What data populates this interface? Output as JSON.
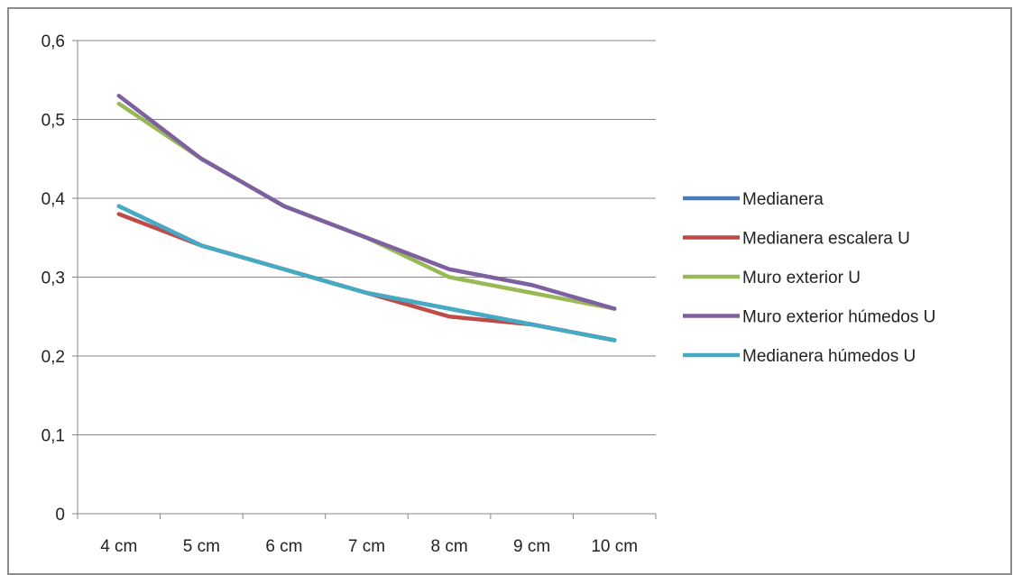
{
  "chart_data": {
    "type": "line",
    "categories": [
      "4 cm",
      "5 cm",
      "6 cm",
      "7 cm",
      "8 cm",
      "9 cm",
      "10 cm"
    ],
    "y_ticks": [
      "0",
      "0,1",
      "0,2",
      "0,3",
      "0,4",
      "0,5",
      "0,6"
    ],
    "ylim": [
      0,
      0.6
    ],
    "grid": true,
    "legend_position": "right",
    "series": [
      {
        "name": "Medianera",
        "color": "#4a7ebb",
        "values": [
          0.39,
          0.34,
          0.31,
          0.28,
          0.26,
          0.24,
          0.22
        ]
      },
      {
        "name": "Medianera escalera U",
        "color": "#be4b48",
        "values": [
          0.38,
          0.34,
          0.31,
          0.28,
          0.25,
          0.24,
          0.22
        ]
      },
      {
        "name": "Muro exterior U",
        "color": "#98b954",
        "values": [
          0.52,
          0.45,
          0.39,
          0.35,
          0.3,
          0.28,
          0.26
        ]
      },
      {
        "name": "Muro exterior húmedos U",
        "color": "#7d60a0",
        "values": [
          0.53,
          0.45,
          0.39,
          0.35,
          0.31,
          0.29,
          0.26
        ]
      },
      {
        "name": "Medianera húmedos U",
        "color": "#46aac5",
        "values": [
          0.39,
          0.34,
          0.31,
          0.28,
          0.26,
          0.24,
          0.22
        ]
      }
    ]
  }
}
